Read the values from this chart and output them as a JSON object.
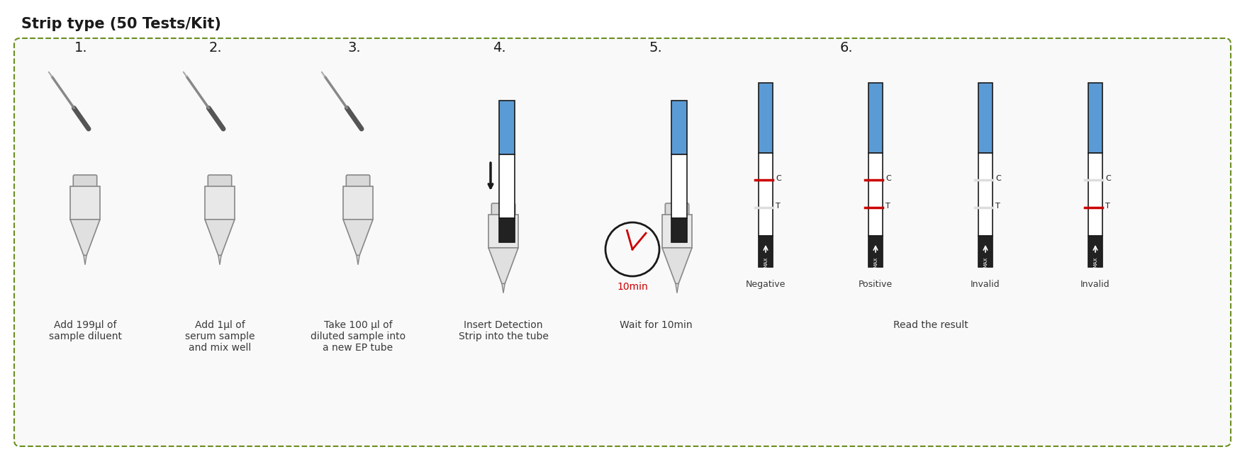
{
  "title": "Strip type (50 Tests/Kit)",
  "title_fontsize": 15,
  "title_fontweight": "bold",
  "background_color": "#ffffff",
  "border_color": "#6b8e23",
  "border_style": "dashed",
  "step_numbers": [
    "1.",
    "2.",
    "3.",
    "4.",
    "5.",
    "6."
  ],
  "step_labels": [
    "Add 199μl of\nsample diluent",
    "Add 1μl of\nserum sample\nand mix well",
    "Take 100 μl of\ndiluted sample into\na new EP tube",
    "Insert Detection\nStrip into the tube",
    "Wait for 10min",
    "Read the result"
  ],
  "result_labels": [
    "Negative",
    "Positive",
    "Invalid",
    "Invalid"
  ],
  "strip_blue": "#5b9bd5",
  "strip_white": "#ffffff",
  "strip_black_border": "#1a1a1a",
  "strip_red": "#cc0000",
  "text_color": "#1a1a1a",
  "label_color": "#3a3a3a",
  "timer_red": "#cc0000",
  "arrow_color": "#1a1a1a"
}
